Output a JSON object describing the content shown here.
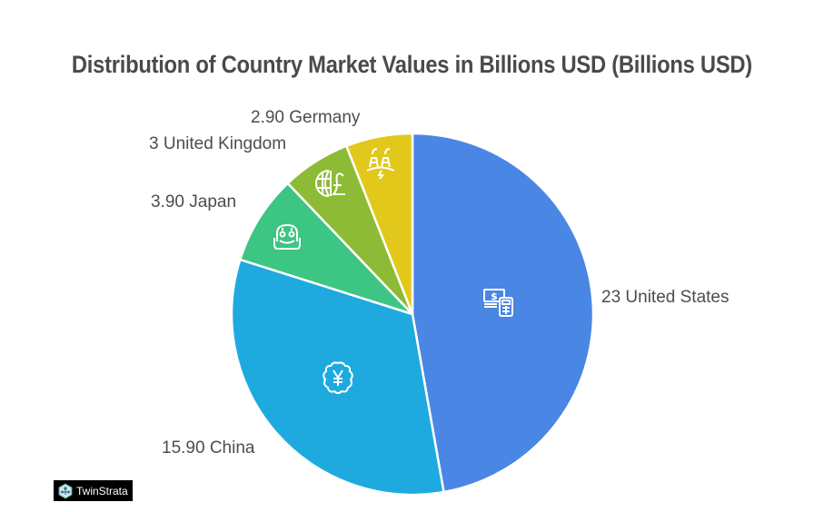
{
  "chart_data": {
    "type": "pie",
    "title": "Distribution of Country Market Values in Billions USD (Billions USD)",
    "categories": [
      "United States",
      "China",
      "Japan",
      "United Kingdom",
      "Germany"
    ],
    "values": [
      23,
      15.9,
      3.9,
      3,
      2.9
    ],
    "labels": [
      "23 United States",
      "15.90 China",
      "3.90 Japan",
      "3 United Kingdom",
      "2.90 Germany"
    ],
    "colors": [
      "#4A86E3",
      "#1EAADF",
      "#3CC583",
      "#8DBB35",
      "#E2C81A"
    ],
    "icons": [
      "money-calculator-icon",
      "yen-badge-icon",
      "robot-icon",
      "globe-pound-icon",
      "power-plant-icon"
    ],
    "start_angle": "top, clockwise",
    "legend": "none (direct labels)"
  },
  "branding": {
    "logo_text": "TwinStrata"
  }
}
